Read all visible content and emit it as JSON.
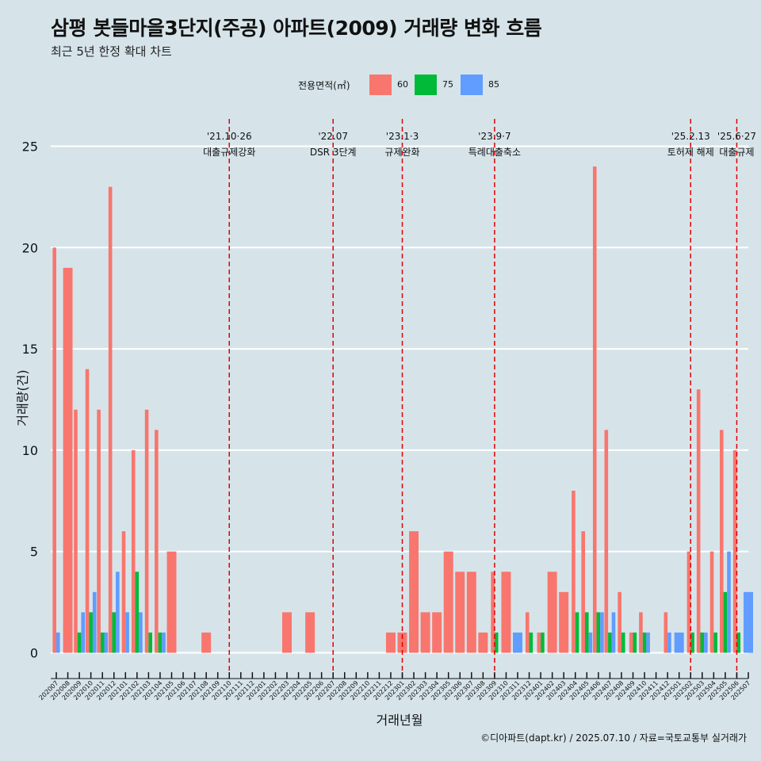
{
  "title": "삼평 봇들마을3단지(주공) 아파트(2009) 거래량 변화 흐름",
  "subtitle": "최근 5년 한정 확대 차트",
  "caption": "©디아파트(dapt.kr) / 2025.07.10 / 자료=국토교통부 실거래가",
  "legend": {
    "title": "전용면적(㎡)",
    "items": [
      {
        "label": "60",
        "color": "#f8766d"
      },
      {
        "label": "75",
        "color": "#00ba38"
      },
      {
        "label": "85",
        "color": "#619cff"
      }
    ]
  },
  "chart_data": {
    "type": "bar",
    "title": "삼평 봇들마을3단지(주공) 아파트(2009) 거래량 변화 흐름",
    "subtitle": "최근 5년 한정 확대 차트",
    "xlabel": "거래년월",
    "ylabel": "거래량(건)",
    "ylim": [
      -1,
      26.5
    ],
    "yticks": [
      0,
      5,
      10,
      15,
      20,
      25
    ],
    "grid": true,
    "legend_position": "top",
    "categories": [
      "202007",
      "202008",
      "202009",
      "202010",
      "202011",
      "202012",
      "202101",
      "202102",
      "202103",
      "202104",
      "202105",
      "202106",
      "202107",
      "202108",
      "202109",
      "202110",
      "202111",
      "202112",
      "202201",
      "202202",
      "202203",
      "202204",
      "202205",
      "202206",
      "202207",
      "202208",
      "202209",
      "202210",
      "202211",
      "202212",
      "202301",
      "202302",
      "202303",
      "202304",
      "202305",
      "202306",
      "202307",
      "202308",
      "202309",
      "202310",
      "202311",
      "202312",
      "202401",
      "202402",
      "202403",
      "202404",
      "202405",
      "202406",
      "202407",
      "202408",
      "202409",
      "202410",
      "202411",
      "202412",
      "202501",
      "202502",
      "202503",
      "202504",
      "202505",
      "202506",
      "202507"
    ],
    "series": [
      {
        "name": "60",
        "color": "#f8766d",
        "values": [
          20,
          19,
          12,
          14,
          12,
          23,
          6,
          10,
          12,
          11,
          5,
          0,
          0,
          1,
          0,
          0,
          0,
          0,
          0,
          0,
          2,
          0,
          2,
          0,
          0,
          0,
          0,
          0,
          0,
          1,
          1,
          6,
          2,
          2,
          5,
          4,
          4,
          1,
          4,
          4,
          0,
          2,
          1,
          4,
          3,
          8,
          6,
          24,
          11,
          3,
          1,
          2,
          0,
          2,
          0,
          5,
          13,
          5,
          11,
          10,
          0
        ]
      },
      {
        "name": "75",
        "color": "#00ba38",
        "values": [
          0,
          0,
          1,
          2,
          1,
          2,
          0,
          4,
          1,
          1,
          0,
          0,
          0,
          0,
          0,
          0,
          0,
          0,
          0,
          0,
          0,
          0,
          0,
          0,
          0,
          0,
          0,
          0,
          0,
          0,
          0,
          0,
          0,
          0,
          0,
          0,
          0,
          0,
          1,
          0,
          0,
          1,
          1,
          0,
          0,
          2,
          2,
          2,
          1,
          1,
          1,
          1,
          0,
          0,
          0,
          1,
          1,
          1,
          3,
          1,
          0
        ]
      },
      {
        "name": "85",
        "color": "#619cff",
        "values": [
          1,
          0,
          2,
          3,
          1,
          4,
          2,
          2,
          0,
          1,
          0,
          0,
          0,
          0,
          0,
          0,
          0,
          0,
          0,
          0,
          0,
          0,
          0,
          0,
          0,
          0,
          0,
          0,
          0,
          0,
          0,
          0,
          0,
          0,
          0,
          0,
          0,
          0,
          0,
          0,
          1,
          0,
          0,
          0,
          0,
          0,
          1,
          2,
          2,
          0,
          0,
          1,
          0,
          1,
          1,
          0,
          1,
          0,
          5,
          0,
          3
        ]
      }
    ],
    "annotations": [
      {
        "x": "202110",
        "line1": "'21.10·26",
        "line2": "대출규제강화"
      },
      {
        "x": "202207",
        "line1": "'22.07",
        "line2": "DSR 3단계"
      },
      {
        "x": "202301",
        "line1": "'23.1·3",
        "line2": "규제완화"
      },
      {
        "x": "202309",
        "line1": "'23.9·7",
        "line2": "특례대출축소"
      },
      {
        "x": "202502",
        "line1": "'25.2.13",
        "line2": "토허제 해제"
      },
      {
        "x": "202506",
        "line1": "'25.6·27",
        "line2": "대출규제"
      }
    ]
  }
}
